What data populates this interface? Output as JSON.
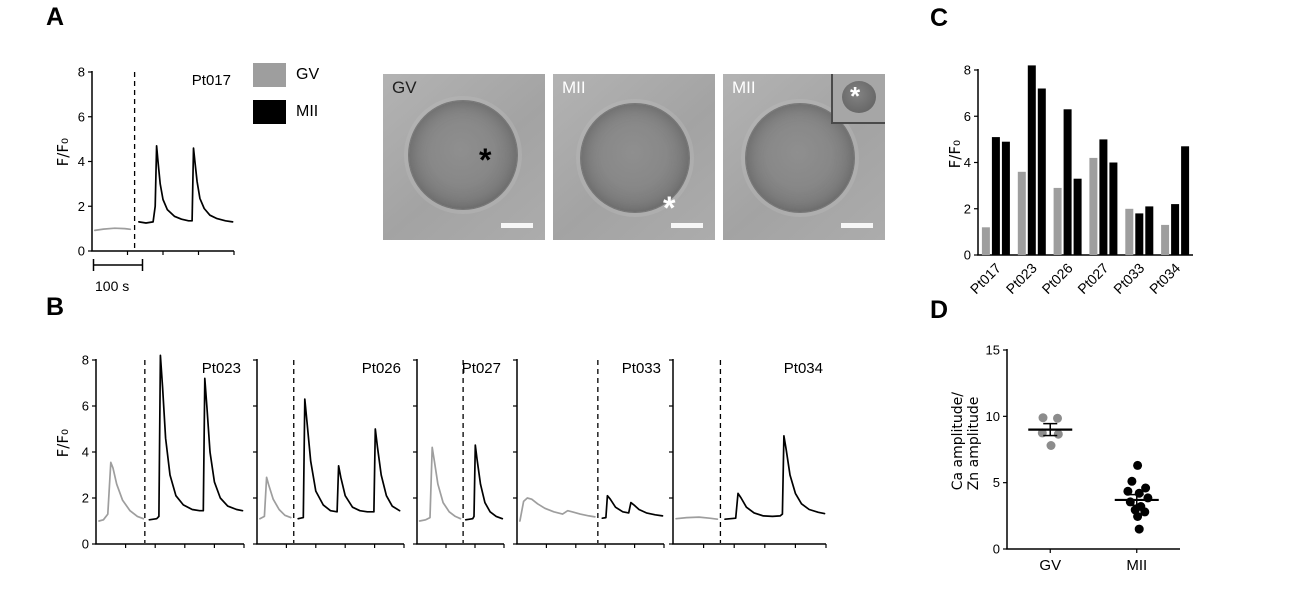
{
  "panels": {
    "a": "A",
    "b": "B",
    "c": "C",
    "d": "D"
  },
  "labels": {
    "ffo": "F/F₀",
    "scalebar": "100 s"
  },
  "legend": {
    "items": [
      {
        "label": "GV",
        "color": "#9e9e9e"
      },
      {
        "label": "MII",
        "color": "#000000"
      }
    ]
  },
  "micrographs": [
    {
      "label": "GV",
      "asterisk": "*",
      "asterisk_color": "#000000"
    },
    {
      "label": "MII",
      "asterisk": "*",
      "asterisk_color": "#ffffff"
    },
    {
      "label": "MII",
      "inset_asterisk": "*",
      "inset_asterisk_color": "#ffffff"
    }
  ],
  "chart_data": [
    {
      "id": "Pt017",
      "type": "line",
      "title": "Pt017",
      "ylabel": "F/F₀",
      "ylim": [
        0,
        8
      ],
      "yticks": [
        0,
        2,
        4,
        6,
        8
      ],
      "dash_x": 0.3,
      "xscalebar": "100 s",
      "series": [
        {
          "name": "GV",
          "color": "#9e9e9e",
          "points": [
            [
              0.02,
              0.92
            ],
            [
              0.08,
              0.98
            ],
            [
              0.16,
              1.02
            ],
            [
              0.23,
              1.0
            ],
            [
              0.27,
              0.97
            ]
          ]
        },
        {
          "name": "MII",
          "color": "#000000",
          "points": [
            [
              0.33,
              1.3
            ],
            [
              0.38,
              1.25
            ],
            [
              0.43,
              1.3
            ],
            [
              0.445,
              2.0
            ],
            [
              0.455,
              4.7
            ],
            [
              0.465,
              4.0
            ],
            [
              0.48,
              3.0
            ],
            [
              0.5,
              2.3
            ],
            [
              0.53,
              1.85
            ],
            [
              0.58,
              1.55
            ],
            [
              0.63,
              1.42
            ],
            [
              0.68,
              1.35
            ],
            [
              0.705,
              1.35
            ],
            [
              0.715,
              4.6
            ],
            [
              0.725,
              4.0
            ],
            [
              0.74,
              3.1
            ],
            [
              0.76,
              2.35
            ],
            [
              0.79,
              1.9
            ],
            [
              0.83,
              1.6
            ],
            [
              0.88,
              1.45
            ],
            [
              0.94,
              1.35
            ],
            [
              0.99,
              1.3
            ]
          ]
        }
      ]
    },
    {
      "id": "Pt023",
      "type": "line",
      "title": "Pt023",
      "ylabel": "F/F₀",
      "ylim": [
        0,
        8
      ],
      "yticks": [
        0,
        2,
        4,
        6,
        8
      ],
      "dash_x": 0.33,
      "series": [
        {
          "name": "GV",
          "color": "#9e9e9e",
          "points": [
            [
              0.02,
              1.0
            ],
            [
              0.05,
              1.05
            ],
            [
              0.08,
              1.3
            ],
            [
              0.1,
              3.55
            ],
            [
              0.115,
              3.3
            ],
            [
              0.14,
              2.6
            ],
            [
              0.18,
              1.9
            ],
            [
              0.23,
              1.45
            ],
            [
              0.28,
              1.2
            ],
            [
              0.32,
              1.1
            ]
          ]
        },
        {
          "name": "MII",
          "color": "#000000",
          "points": [
            [
              0.36,
              1.05
            ],
            [
              0.41,
              1.1
            ],
            [
              0.425,
              1.2
            ],
            [
              0.435,
              8.2
            ],
            [
              0.45,
              6.8
            ],
            [
              0.47,
              4.6
            ],
            [
              0.5,
              3.0
            ],
            [
              0.54,
              2.1
            ],
            [
              0.59,
              1.7
            ],
            [
              0.65,
              1.5
            ],
            [
              0.7,
              1.45
            ],
            [
              0.725,
              1.45
            ],
            [
              0.735,
              7.2
            ],
            [
              0.75,
              5.9
            ],
            [
              0.77,
              4.0
            ],
            [
              0.8,
              2.7
            ],
            [
              0.84,
              2.0
            ],
            [
              0.89,
              1.65
            ],
            [
              0.95,
              1.5
            ],
            [
              0.99,
              1.45
            ]
          ]
        }
      ]
    },
    {
      "id": "Pt026",
      "type": "line",
      "title": "Pt026",
      "ylim": [
        0,
        8
      ],
      "yticks": [
        0,
        2,
        4,
        6,
        8
      ],
      "dash_x": 0.25,
      "series": [
        {
          "name": "GV",
          "color": "#9e9e9e",
          "points": [
            [
              0.02,
              1.1
            ],
            [
              0.05,
              1.2
            ],
            [
              0.065,
              2.9
            ],
            [
              0.08,
              2.55
            ],
            [
              0.11,
              1.95
            ],
            [
              0.15,
              1.5
            ],
            [
              0.19,
              1.25
            ],
            [
              0.23,
              1.15
            ]
          ]
        },
        {
          "name": "MII",
          "color": "#000000",
          "points": [
            [
              0.28,
              1.1
            ],
            [
              0.315,
              1.15
            ],
            [
              0.325,
              6.3
            ],
            [
              0.34,
              5.3
            ],
            [
              0.365,
              3.6
            ],
            [
              0.4,
              2.3
            ],
            [
              0.45,
              1.7
            ],
            [
              0.5,
              1.45
            ],
            [
              0.545,
              1.4
            ],
            [
              0.555,
              3.4
            ],
            [
              0.57,
              2.9
            ],
            [
              0.6,
              2.1
            ],
            [
              0.65,
              1.6
            ],
            [
              0.7,
              1.45
            ],
            [
              0.75,
              1.4
            ],
            [
              0.795,
              1.4
            ],
            [
              0.805,
              5.0
            ],
            [
              0.82,
              4.2
            ],
            [
              0.845,
              3.0
            ],
            [
              0.88,
              2.1
            ],
            [
              0.92,
              1.65
            ],
            [
              0.97,
              1.45
            ]
          ]
        }
      ]
    },
    {
      "id": "Pt027",
      "type": "line",
      "title": "Pt027",
      "ylim": [
        0,
        8
      ],
      "yticks": [
        0,
        2,
        4,
        6,
        8
      ],
      "dash_x": 0.53,
      "series": [
        {
          "name": "GV",
          "color": "#9e9e9e",
          "points": [
            [
              0.03,
              1.0
            ],
            [
              0.1,
              1.05
            ],
            [
              0.15,
              1.15
            ],
            [
              0.175,
              4.2
            ],
            [
              0.2,
              3.6
            ],
            [
              0.24,
              2.6
            ],
            [
              0.3,
              1.8
            ],
            [
              0.37,
              1.4
            ],
            [
              0.44,
              1.2
            ],
            [
              0.5,
              1.1
            ]
          ]
        },
        {
          "name": "MII",
          "color": "#000000",
          "points": [
            [
              0.56,
              1.05
            ],
            [
              0.64,
              1.1
            ],
            [
              0.655,
              1.2
            ],
            [
              0.67,
              4.3
            ],
            [
              0.69,
              3.7
            ],
            [
              0.73,
              2.6
            ],
            [
              0.78,
              1.8
            ],
            [
              0.84,
              1.4
            ],
            [
              0.91,
              1.2
            ],
            [
              0.98,
              1.1
            ]
          ]
        }
      ]
    },
    {
      "id": "Pt033",
      "type": "line",
      "title": "Pt033",
      "ylim": [
        0,
        8
      ],
      "yticks": [
        0,
        2,
        4,
        6,
        8
      ],
      "dash_x": 0.55,
      "series": [
        {
          "name": "GV",
          "color": "#9e9e9e",
          "points": [
            [
              0.02,
              1.0
            ],
            [
              0.045,
              1.85
            ],
            [
              0.07,
              2.0
            ],
            [
              0.1,
              1.95
            ],
            [
              0.14,
              1.75
            ],
            [
              0.19,
              1.55
            ],
            [
              0.25,
              1.4
            ],
            [
              0.31,
              1.3
            ],
            [
              0.345,
              1.45
            ],
            [
              0.375,
              1.4
            ],
            [
              0.43,
              1.3
            ],
            [
              0.49,
              1.22
            ],
            [
              0.53,
              1.18
            ]
          ]
        },
        {
          "name": "MII",
          "color": "#000000",
          "points": [
            [
              0.58,
              1.12
            ],
            [
              0.605,
              1.15
            ],
            [
              0.615,
              2.1
            ],
            [
              0.635,
              1.95
            ],
            [
              0.67,
              1.6
            ],
            [
              0.72,
              1.4
            ],
            [
              0.76,
              1.35
            ],
            [
              0.775,
              1.8
            ],
            [
              0.795,
              1.7
            ],
            [
              0.83,
              1.5
            ],
            [
              0.88,
              1.35
            ],
            [
              0.94,
              1.27
            ],
            [
              0.99,
              1.22
            ]
          ]
        }
      ]
    },
    {
      "id": "Pt034",
      "type": "line",
      "title": "Pt034",
      "ylim": [
        0,
        8
      ],
      "yticks": [
        0,
        2,
        4,
        6,
        8
      ],
      "dash_x": 0.31,
      "series": [
        {
          "name": "GV",
          "color": "#9e9e9e",
          "points": [
            [
              0.02,
              1.1
            ],
            [
              0.09,
              1.15
            ],
            [
              0.17,
              1.17
            ],
            [
              0.24,
              1.12
            ],
            [
              0.29,
              1.08
            ]
          ]
        },
        {
          "name": "MII",
          "color": "#000000",
          "points": [
            [
              0.34,
              1.08
            ],
            [
              0.41,
              1.12
            ],
            [
              0.425,
              2.2
            ],
            [
              0.445,
              2.0
            ],
            [
              0.48,
              1.6
            ],
            [
              0.53,
              1.35
            ],
            [
              0.59,
              1.22
            ],
            [
              0.65,
              1.2
            ],
            [
              0.7,
              1.22
            ],
            [
              0.715,
              1.3
            ],
            [
              0.725,
              4.7
            ],
            [
              0.74,
              4.1
            ],
            [
              0.765,
              3.0
            ],
            [
              0.8,
              2.2
            ],
            [
              0.84,
              1.75
            ],
            [
              0.89,
              1.5
            ],
            [
              0.95,
              1.38
            ],
            [
              0.99,
              1.32
            ]
          ]
        }
      ]
    },
    {
      "id": "amplitudes",
      "type": "bar",
      "ylabel": "F/F₀",
      "ylim": [
        0,
        8
      ],
      "yticks": [
        0,
        2,
        4,
        6,
        8
      ],
      "colors": {
        "GV": "#9e9e9e",
        "MII": "#000000"
      },
      "categories": [
        "Pt017",
        "Pt023",
        "Pt026",
        "Pt027",
        "Pt033",
        "Pt034"
      ],
      "groups": [
        {
          "category": "Pt017",
          "bars": [
            {
              "stage": "GV",
              "value": 1.2
            },
            {
              "stage": "MII",
              "value": 5.1
            },
            {
              "stage": "MII",
              "value": 4.9
            }
          ]
        },
        {
          "category": "Pt023",
          "bars": [
            {
              "stage": "GV",
              "value": 3.6
            },
            {
              "stage": "MII",
              "value": 8.2
            },
            {
              "stage": "MII",
              "value": 7.2
            }
          ]
        },
        {
          "category": "Pt026",
          "bars": [
            {
              "stage": "GV",
              "value": 2.9
            },
            {
              "stage": "MII",
              "value": 6.3
            },
            {
              "stage": "MII",
              "value": 3.3
            }
          ]
        },
        {
          "category": "Pt027",
          "bars": [
            {
              "stage": "GV",
              "value": 4.2
            },
            {
              "stage": "MII",
              "value": 5.0
            },
            {
              "stage": "MII",
              "value": 4.0
            }
          ]
        },
        {
          "category": "Pt033",
          "bars": [
            {
              "stage": "GV",
              "value": 2.0
            },
            {
              "stage": "MII",
              "value": 1.8
            },
            {
              "stage": "MII",
              "value": 2.1
            }
          ]
        },
        {
          "category": "Pt034",
          "bars": [
            {
              "stage": "GV",
              "value": 1.3
            },
            {
              "stage": "MII",
              "value": 2.2
            },
            {
              "stage": "MII",
              "value": 4.7
            }
          ]
        }
      ]
    },
    {
      "id": "ca_zn_ratio",
      "type": "scatter",
      "ylabel_lines": [
        "Ca amplitude/",
        "Zn amplitude"
      ],
      "ylim": [
        0,
        15
      ],
      "yticks": [
        0,
        5,
        10,
        15
      ],
      "categories": [
        "GV",
        "MII"
      ],
      "series": [
        {
          "name": "GV",
          "color": "#8c8c8c",
          "mean": 9.0,
          "sem": 0.45,
          "points": [
            [
              -0.45,
              9.9
            ],
            [
              0.45,
              9.85
            ],
            [
              -0.5,
              8.75
            ],
            [
              0.5,
              8.65
            ],
            [
              0.05,
              7.8
            ]
          ]
        },
        {
          "name": "MII",
          "color": "#000000",
          "mean": 3.7,
          "sem": 0.4,
          "points": [
            [
              0.05,
              6.3
            ],
            [
              -0.3,
              5.1
            ],
            [
              0.55,
              4.6
            ],
            [
              -0.55,
              4.35
            ],
            [
              0.15,
              4.2
            ],
            [
              0.7,
              3.85
            ],
            [
              -0.4,
              3.55
            ],
            [
              0.25,
              3.2
            ],
            [
              -0.1,
              2.95
            ],
            [
              0.5,
              2.8
            ],
            [
              0.05,
              2.45
            ],
            [
              0.15,
              1.5
            ]
          ]
        }
      ]
    }
  ]
}
